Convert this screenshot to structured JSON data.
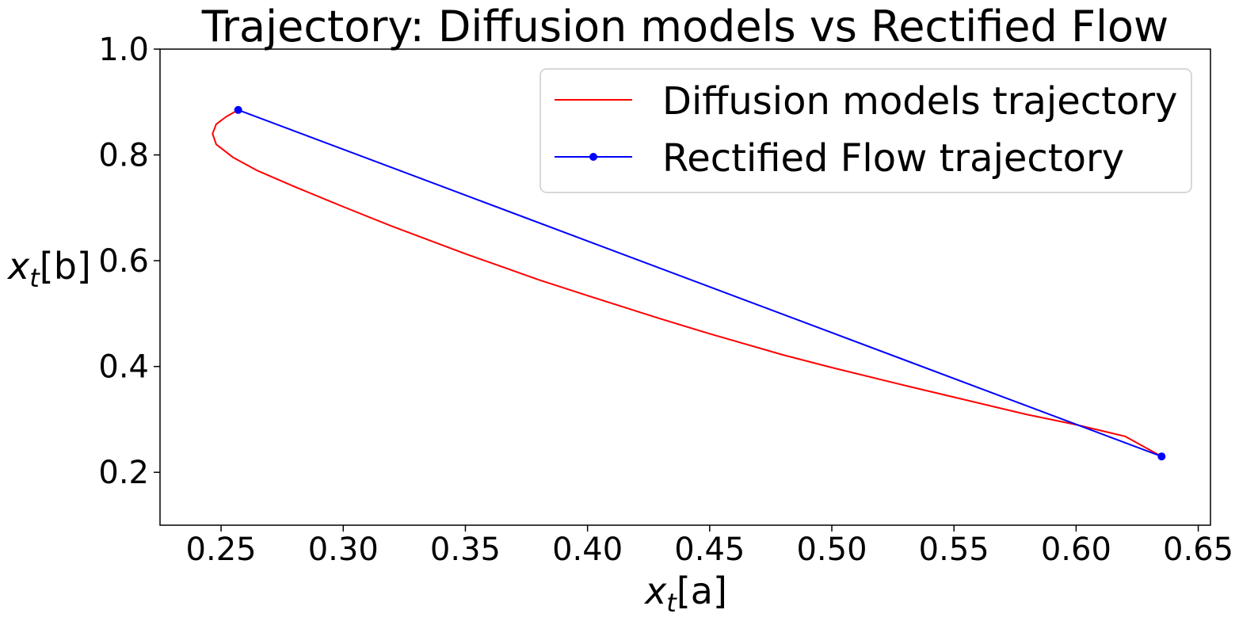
{
  "chart_data": {
    "type": "line",
    "title": "Trajectory: Diffusion models vs Rectified Flow",
    "xlabel": "x_t[a]",
    "ylabel": "x_t[b]",
    "xlabel_parts": {
      "base": "x",
      "sub": "t",
      "bracket": "[a]"
    },
    "ylabel_parts": {
      "base": "x",
      "sub": "t",
      "bracket": "[b]"
    },
    "xlim": [
      0.225,
      0.655
    ],
    "ylim": [
      0.1,
      1.0
    ],
    "xticks": [
      "0.25",
      "0.30",
      "0.35",
      "0.40",
      "0.45",
      "0.50",
      "0.55",
      "0.60",
      "0.65"
    ],
    "yticks": [
      "0.2",
      "0.4",
      "0.6",
      "0.8",
      "1.0"
    ],
    "grid": false,
    "legend_position": "top-right",
    "series": [
      {
        "name": "Diffusion models trajectory",
        "color": "#ff0000",
        "marker": "none",
        "x": [
          0.257,
          0.252,
          0.248,
          0.2465,
          0.248,
          0.255,
          0.265,
          0.28,
          0.3,
          0.32,
          0.35,
          0.38,
          0.4,
          0.43,
          0.45,
          0.48,
          0.5,
          0.53,
          0.55,
          0.58,
          0.6,
          0.62,
          0.635
        ],
        "y": [
          0.885,
          0.872,
          0.858,
          0.84,
          0.82,
          0.795,
          0.77,
          0.74,
          0.702,
          0.665,
          0.613,
          0.564,
          0.534,
          0.49,
          0.462,
          0.422,
          0.398,
          0.364,
          0.342,
          0.309,
          0.29,
          0.268,
          0.23
        ]
      },
      {
        "name": "Rectified Flow trajectory",
        "color": "#0000ff",
        "marker": "circle",
        "x": [
          0.257,
          0.635
        ],
        "y": [
          0.885,
          0.23
        ]
      }
    ]
  }
}
